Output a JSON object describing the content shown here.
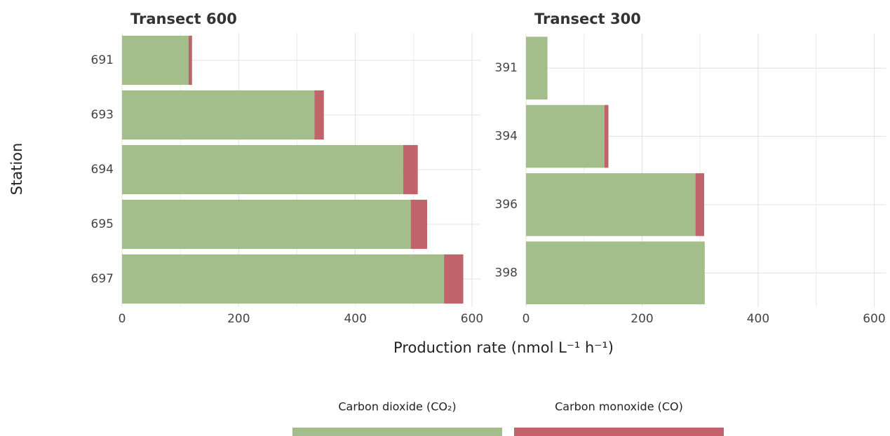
{
  "chart_data": [
    {
      "type": "stacked-barh",
      "title": "Transect 600",
      "categories": [
        "691",
        "693",
        "694",
        "695",
        "697"
      ],
      "series": [
        {
          "name": "Carbon dioxide (CO₂)",
          "color": "#a3bd8b",
          "values": [
            114,
            330,
            482,
            495,
            552
          ]
        },
        {
          "name": "Carbon monoxide (CO)",
          "color": "#c0636b",
          "values": [
            6,
            16,
            25,
            28,
            33
          ]
        }
      ],
      "xlim": [
        0,
        615
      ],
      "xticks": [
        0,
        200,
        400,
        600
      ],
      "xminor": [
        100,
        300,
        500
      ],
      "grid": true
    },
    {
      "type": "stacked-barh",
      "title": "Transect 300",
      "categories": [
        "391",
        "394",
        "396",
        "398"
      ],
      "series": [
        {
          "name": "Carbon dioxide (CO₂)",
          "color": "#a3bd8b",
          "values": [
            37,
            135,
            292,
            308
          ]
        },
        {
          "name": "Carbon monoxide (CO)",
          "color": "#c0636b",
          "values": [
            0,
            7,
            15,
            0
          ]
        }
      ],
      "xlim": [
        0,
        620
      ],
      "xticks": [
        0,
        200,
        400,
        600
      ],
      "xminor": [
        100,
        300,
        500
      ],
      "grid": true
    }
  ],
  "xlabel": "Production rate (nmol L⁻¹ h⁻¹)",
  "ylabel": "Station",
  "legend": "bottom"
}
